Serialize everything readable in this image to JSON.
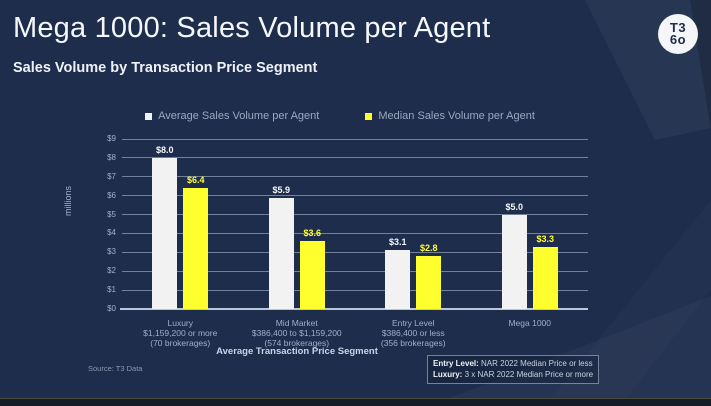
{
  "slide": {
    "title": "Mega 1000: Sales Volume per Agent",
    "subtitle": "Sales Volume by Transaction Price Segment",
    "logo": {
      "line1": "T3",
      "line2": "6o"
    },
    "source": "Source: T3 Data",
    "footnote": {
      "line1_label": "Entry Level:",
      "line1_text": " NAR 2022 Median Price or less",
      "line2_label": "Luxury:",
      "line2_text": " 3 x NAR 2022 Median Price or more"
    }
  },
  "colors": {
    "background": "#1e2d4c",
    "average_bar": "#f2f2f2",
    "median_bar": "#ffff2e",
    "average_label": "#f5f7fa",
    "median_label": "#ffff2e"
  },
  "chart_data": {
    "type": "bar",
    "title": "",
    "xlabel": "Average Transaction Price Segment",
    "ylabel": "millions",
    "ylim": [
      0,
      9
    ],
    "yticks": [
      "$0",
      "$1",
      "$2",
      "$3",
      "$4",
      "$5",
      "$6",
      "$7",
      "$8",
      "$9"
    ],
    "grid": true,
    "legend_position": "top",
    "categories": [
      [
        "Luxury",
        "$1,159,200 or more",
        "(70 brokerages)"
      ],
      [
        "Mid Market",
        "$386,400 to $1,159,200",
        "(574 brokerages)"
      ],
      [
        "Entry Level",
        "$386,400 or less",
        "(356 brokerages)"
      ],
      [
        "Mega 1000"
      ]
    ],
    "series": [
      {
        "name": "Average Sales Volume per Agent",
        "color": "#f2f2f2",
        "label_color": "#f5f7fa",
        "values": [
          8.0,
          5.9,
          3.1,
          5.0
        ],
        "labels": [
          "$8.0",
          "$5.9",
          "$3.1",
          "$5.0"
        ]
      },
      {
        "name": "Median Sales Volume per Agent",
        "color": "#ffff2e",
        "label_color": "#ffff2e",
        "values": [
          6.4,
          3.6,
          2.8,
          3.3
        ],
        "labels": [
          "$6.4",
          "$3.6",
          "$2.8",
          "$3.3"
        ]
      }
    ]
  }
}
